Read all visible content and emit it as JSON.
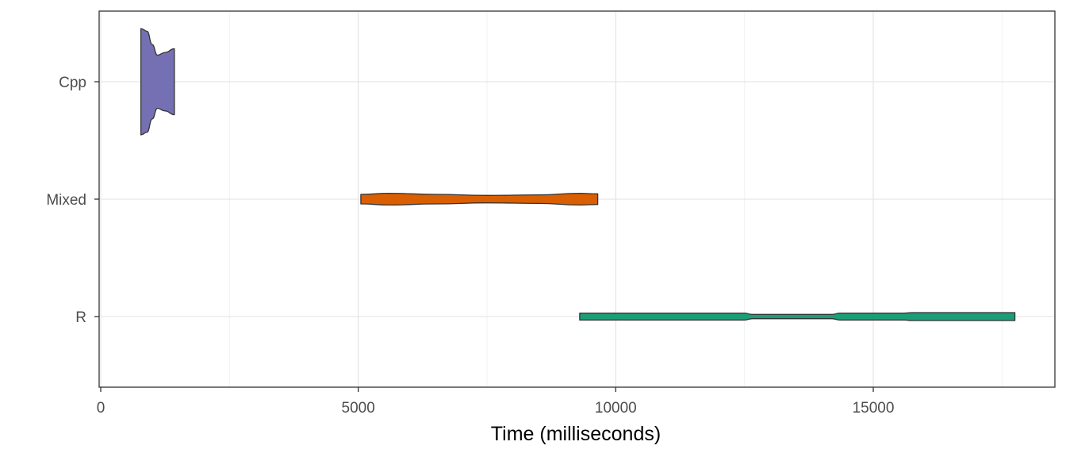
{
  "chart_data": {
    "type": "violin",
    "orientation": "horizontal",
    "xlabel": "Time (milliseconds)",
    "ylabel": "",
    "xlim": [
      0,
      18500
    ],
    "x_ticks": [
      0,
      5000,
      10000,
      15000
    ],
    "x_tick_labels": [
      "0",
      "5000",
      "10000",
      "15000"
    ],
    "categories": [
      "Cpp",
      "Mixed",
      "R"
    ],
    "grid": true,
    "legend": "none",
    "series": [
      {
        "category": "Cpp",
        "color": "#7570b3",
        "range": [
          780,
          1430
        ],
        "density": [
          [
            780,
            1.0
          ],
          [
            900,
            0.95
          ],
          [
            1000,
            0.7
          ],
          [
            1100,
            0.5
          ],
          [
            1250,
            0.55
          ],
          [
            1430,
            0.62
          ]
        ]
      },
      {
        "category": "Mixed",
        "color": "#d95f02",
        "range": [
          5050,
          9650
        ],
        "density": [
          [
            5050,
            0.09
          ],
          [
            5600,
            0.11
          ],
          [
            6500,
            0.09
          ],
          [
            7500,
            0.07
          ],
          [
            8500,
            0.08
          ],
          [
            9300,
            0.11
          ],
          [
            9650,
            0.1
          ]
        ]
      },
      {
        "category": "R",
        "color": "#1b9e77",
        "range": [
          9300,
          17750
        ],
        "density": [
          [
            9300,
            0.065
          ],
          [
            12500,
            0.065
          ],
          [
            12650,
            0.04
          ],
          [
            14200,
            0.04
          ],
          [
            14350,
            0.065
          ],
          [
            15600,
            0.065
          ],
          [
            15750,
            0.075
          ],
          [
            17750,
            0.075
          ]
        ]
      }
    ]
  }
}
